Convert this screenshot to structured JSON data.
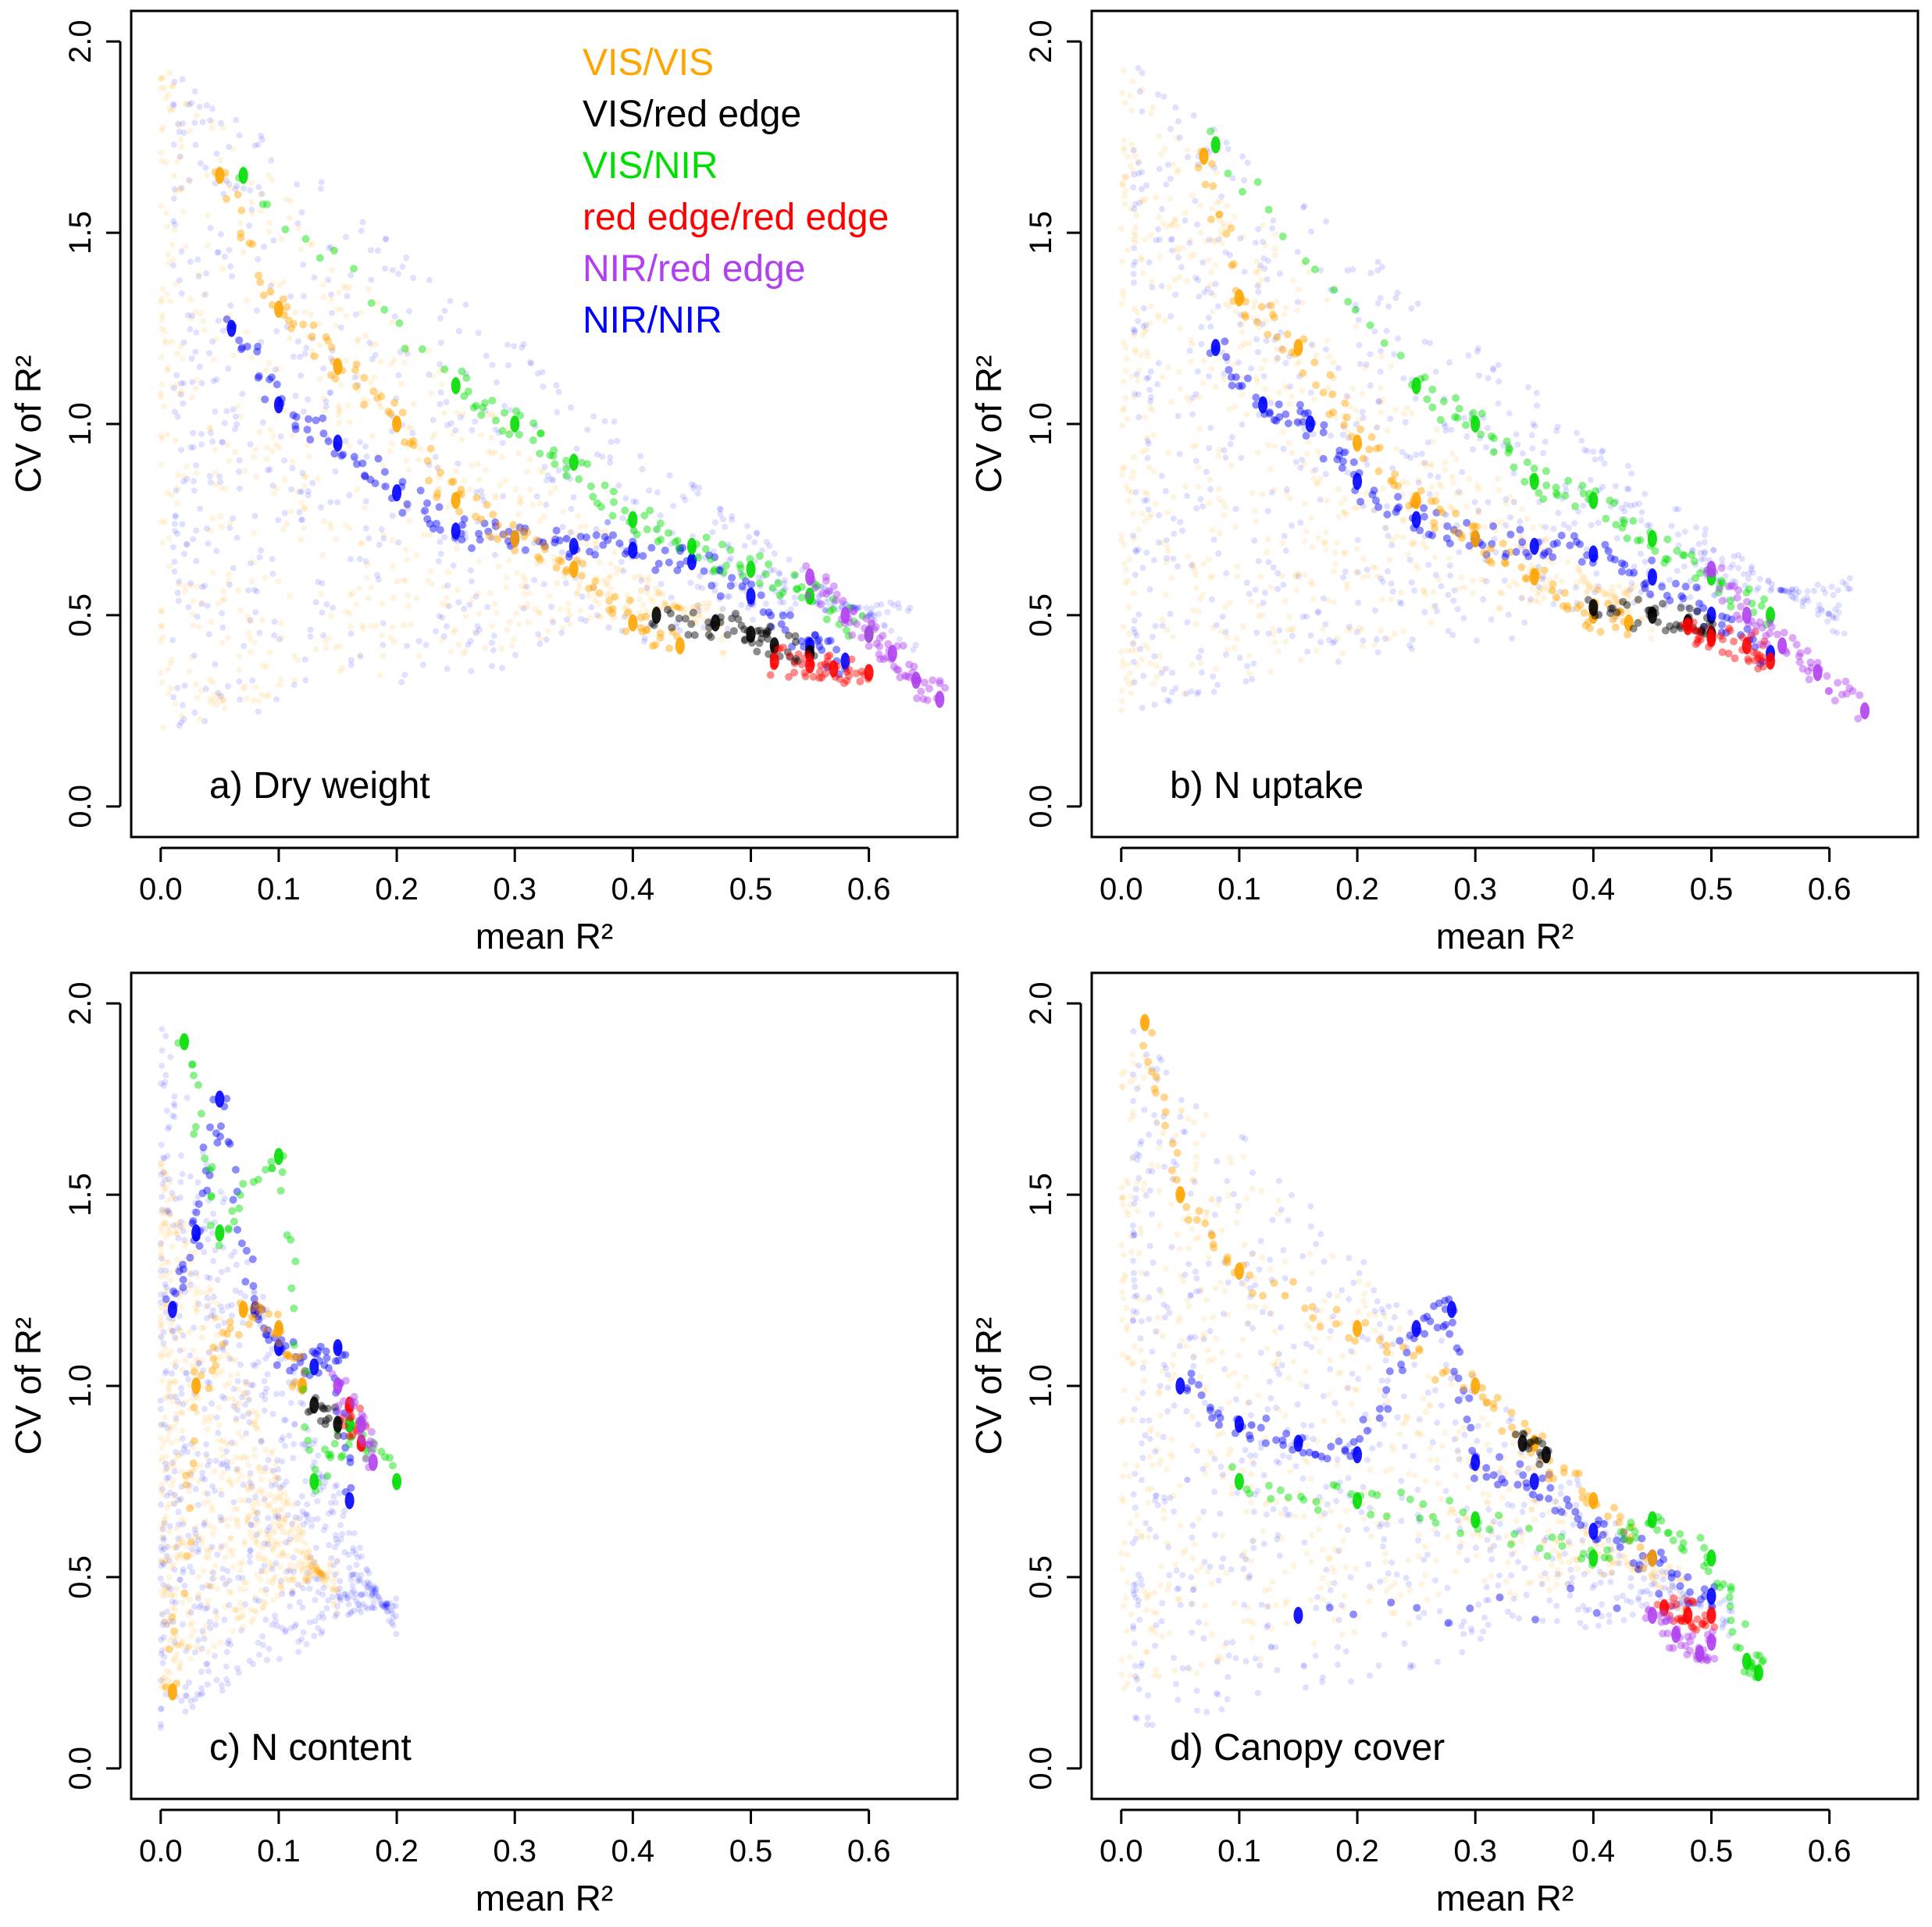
{
  "figure_name": "cv-vs-mean-r2-panels",
  "legend": [
    {
      "label": "VIS/VIS",
      "color": "#FFA500"
    },
    {
      "label": "VIS/red edge",
      "color": "#000000"
    },
    {
      "label": "VIS/NIR",
      "color": "#00DD00"
    },
    {
      "label": "red edge/red edge",
      "color": "#FF0000"
    },
    {
      "label": "NIR/red edge",
      "color": "#B040F0"
    },
    {
      "label": "NIR/NIR",
      "color": "#0000FF"
    }
  ],
  "chart_data": [
    {
      "type": "scatter",
      "title": "a) Dry weight",
      "xlabel": "mean R²",
      "ylabel": "CV of R²",
      "xlim": [
        -0.025,
        0.675
      ],
      "ylim": [
        -0.08,
        2.08
      ],
      "xticks": [
        "0.0",
        "0.1",
        "0.2",
        "0.3",
        "0.4",
        "0.5",
        "0.6"
      ],
      "yticks": [
        "0.0",
        "0.5",
        "1.0",
        "1.5",
        "2.0"
      ],
      "grid": false,
      "series": [
        {
          "name": "NIR/NIR",
          "cloud": {
            "xmin": 0.01,
            "xmax": 0.64,
            "ymin": 0.2,
            "ymax": 1.95
          },
          "points": [
            [
              0.06,
              1.25
            ],
            [
              0.1,
              1.05
            ],
            [
              0.15,
              0.95
            ],
            [
              0.2,
              0.82
            ],
            [
              0.25,
              0.72
            ],
            [
              0.3,
              0.7
            ],
            [
              0.35,
              0.68
            ],
            [
              0.4,
              0.67
            ],
            [
              0.45,
              0.64
            ],
            [
              0.5,
              0.55
            ],
            [
              0.55,
              0.42
            ],
            [
              0.58,
              0.38
            ]
          ]
        },
        {
          "name": "VIS/VIS",
          "cloud": {
            "xmin": 0.0,
            "xmax": 0.48,
            "ymin": 0.2,
            "ymax": 1.95
          },
          "points": [
            [
              0.05,
              1.65
            ],
            [
              0.1,
              1.3
            ],
            [
              0.15,
              1.15
            ],
            [
              0.2,
              1.0
            ],
            [
              0.25,
              0.8
            ],
            [
              0.3,
              0.7
            ],
            [
              0.35,
              0.62
            ],
            [
              0.4,
              0.48
            ],
            [
              0.44,
              0.42
            ]
          ]
        },
        {
          "name": "VIS/NIR",
          "points": [
            [
              0.07,
              1.65
            ],
            [
              0.25,
              1.1
            ],
            [
              0.3,
              1.0
            ],
            [
              0.35,
              0.9
            ],
            [
              0.4,
              0.75
            ],
            [
              0.45,
              0.68
            ],
            [
              0.5,
              0.62
            ],
            [
              0.55,
              0.55
            ],
            [
              0.6,
              0.45
            ]
          ]
        },
        {
          "name": "VIS/red edge",
          "points": [
            [
              0.42,
              0.5
            ],
            [
              0.47,
              0.48
            ],
            [
              0.5,
              0.45
            ],
            [
              0.52,
              0.42
            ],
            [
              0.55,
              0.4
            ]
          ]
        },
        {
          "name": "red edge/red edge",
          "points": [
            [
              0.52,
              0.38
            ],
            [
              0.55,
              0.37
            ],
            [
              0.57,
              0.36
            ],
            [
              0.6,
              0.35
            ]
          ]
        },
        {
          "name": "NIR/red edge",
          "points": [
            [
              0.55,
              0.6
            ],
            [
              0.58,
              0.5
            ],
            [
              0.6,
              0.45
            ],
            [
              0.62,
              0.4
            ],
            [
              0.64,
              0.33
            ],
            [
              0.66,
              0.28
            ]
          ]
        }
      ]
    },
    {
      "type": "scatter",
      "title": "b) N uptake",
      "xlabel": "mean R²",
      "ylabel": "CV of R²",
      "xlim": [
        -0.025,
        0.675
      ],
      "ylim": [
        -0.08,
        2.08
      ],
      "xticks": [
        "0.0",
        "0.1",
        "0.2",
        "0.3",
        "0.4",
        "0.5",
        "0.6"
      ],
      "yticks": [
        "0.0",
        "0.5",
        "1.0",
        "1.5",
        "2.0"
      ],
      "grid": false,
      "series": [
        {
          "name": "NIR/NIR",
          "cloud": {
            "xmin": 0.01,
            "xmax": 0.62,
            "ymin": 0.25,
            "ymax": 1.95
          },
          "points": [
            [
              0.08,
              1.2
            ],
            [
              0.12,
              1.05
            ],
            [
              0.16,
              1.0
            ],
            [
              0.2,
              0.85
            ],
            [
              0.25,
              0.75
            ],
            [
              0.3,
              0.7
            ],
            [
              0.35,
              0.68
            ],
            [
              0.4,
              0.66
            ],
            [
              0.45,
              0.6
            ],
            [
              0.5,
              0.5
            ],
            [
              0.55,
              0.4
            ]
          ]
        },
        {
          "name": "VIS/VIS",
          "cloud": {
            "xmin": 0.0,
            "xmax": 0.45,
            "ymin": 0.25,
            "ymax": 1.95
          },
          "points": [
            [
              0.07,
              1.7
            ],
            [
              0.1,
              1.33
            ],
            [
              0.15,
              1.2
            ],
            [
              0.2,
              0.95
            ],
            [
              0.25,
              0.8
            ],
            [
              0.3,
              0.7
            ],
            [
              0.35,
              0.6
            ],
            [
              0.4,
              0.5
            ],
            [
              0.43,
              0.48
            ]
          ]
        },
        {
          "name": "VIS/NIR",
          "points": [
            [
              0.08,
              1.73
            ],
            [
              0.25,
              1.1
            ],
            [
              0.3,
              1.0
            ],
            [
              0.35,
              0.85
            ],
            [
              0.4,
              0.8
            ],
            [
              0.45,
              0.7
            ],
            [
              0.5,
              0.6
            ],
            [
              0.55,
              0.5
            ]
          ]
        },
        {
          "name": "VIS/red edge",
          "points": [
            [
              0.4,
              0.52
            ],
            [
              0.45,
              0.5
            ],
            [
              0.48,
              0.48
            ],
            [
              0.5,
              0.45
            ]
          ]
        },
        {
          "name": "red edge/red edge",
          "points": [
            [
              0.48,
              0.47
            ],
            [
              0.5,
              0.44
            ],
            [
              0.53,
              0.42
            ],
            [
              0.55,
              0.38
            ]
          ]
        },
        {
          "name": "NIR/red edge",
          "points": [
            [
              0.5,
              0.62
            ],
            [
              0.53,
              0.5
            ],
            [
              0.56,
              0.42
            ],
            [
              0.59,
              0.35
            ],
            [
              0.63,
              0.25
            ]
          ]
        }
      ]
    },
    {
      "type": "scatter",
      "title": "c) N content",
      "xlabel": "mean R²",
      "ylabel": "CV of R²",
      "xlim": [
        -0.025,
        0.675
      ],
      "ylim": [
        -0.08,
        2.08
      ],
      "xticks": [
        "0.0",
        "0.1",
        "0.2",
        "0.3",
        "0.4",
        "0.5",
        "0.6"
      ],
      "yticks": [
        "0.0",
        "0.5",
        "1.0",
        "1.5",
        "2.0"
      ],
      "grid": false,
      "series": [
        {
          "name": "NIR/NIR",
          "cloud": {
            "xmin": 0.0,
            "xmax": 0.2,
            "ymin": 0.1,
            "ymax": 1.95
          },
          "points": [
            [
              0.01,
              1.2
            ],
            [
              0.03,
              1.4
            ],
            [
              0.05,
              1.75
            ],
            [
              0.08,
              1.2
            ],
            [
              0.1,
              1.1
            ],
            [
              0.13,
              1.05
            ],
            [
              0.15,
              1.1
            ],
            [
              0.16,
              0.7
            ]
          ]
        },
        {
          "name": "VIS/VIS",
          "cloud": {
            "xmin": 0.0,
            "xmax": 0.15,
            "ymin": 0.2,
            "ymax": 1.6
          },
          "points": [
            [
              0.01,
              0.2
            ],
            [
              0.03,
              1.0
            ],
            [
              0.07,
              1.2
            ],
            [
              0.1,
              1.15
            ],
            [
              0.12,
              1.0
            ]
          ]
        },
        {
          "name": "VIS/NIR",
          "points": [
            [
              0.02,
              1.9
            ],
            [
              0.05,
              1.4
            ],
            [
              0.1,
              1.6
            ],
            [
              0.13,
              0.75
            ],
            [
              0.16,
              0.9
            ],
            [
              0.2,
              0.75
            ]
          ]
        },
        {
          "name": "VIS/red edge",
          "points": [
            [
              0.13,
              0.95
            ],
            [
              0.15,
              0.9
            ]
          ]
        },
        {
          "name": "red edge/red edge",
          "points": [
            [
              0.16,
              0.95
            ],
            [
              0.17,
              0.85
            ]
          ]
        },
        {
          "name": "NIR/red edge",
          "points": [
            [
              0.15,
              1.0
            ],
            [
              0.17,
              0.9
            ],
            [
              0.18,
              0.8
            ]
          ]
        }
      ]
    },
    {
      "type": "scatter",
      "title": "d) Canopy cover",
      "xlabel": "mean R²",
      "ylabel": "CV of R²",
      "xlim": [
        -0.025,
        0.675
      ],
      "ylim": [
        -0.08,
        2.08
      ],
      "xticks": [
        "0.0",
        "0.1",
        "0.2",
        "0.3",
        "0.4",
        "0.5",
        "0.6"
      ],
      "yticks": [
        "0.0",
        "0.5",
        "1.0",
        "1.5",
        "2.0"
      ],
      "grid": false,
      "series": [
        {
          "name": "NIR/NIR",
          "cloud": {
            "xmin": 0.01,
            "xmax": 0.52,
            "ymin": 0.1,
            "ymax": 1.95
          },
          "points": [
            [
              0.05,
              1.0
            ],
            [
              0.1,
              0.9
            ],
            [
              0.15,
              0.85
            ],
            [
              0.2,
              0.82
            ],
            [
              0.25,
              1.15
            ],
            [
              0.28,
              1.2
            ],
            [
              0.3,
              0.8
            ],
            [
              0.35,
              0.75
            ],
            [
              0.4,
              0.62
            ],
            [
              0.45,
              0.55
            ],
            [
              0.5,
              0.45
            ],
            [
              0.15,
              0.4
            ]
          ]
        },
        {
          "name": "VIS/VIS",
          "cloud": {
            "xmin": 0.0,
            "xmax": 0.48,
            "ymin": 0.2,
            "ymax": 1.95
          },
          "points": [
            [
              0.02,
              1.95
            ],
            [
              0.05,
              1.5
            ],
            [
              0.1,
              1.3
            ],
            [
              0.2,
              1.15
            ],
            [
              0.3,
              1.0
            ],
            [
              0.35,
              0.85
            ],
            [
              0.4,
              0.7
            ],
            [
              0.45,
              0.55
            ]
          ]
        },
        {
          "name": "VIS/NIR",
          "points": [
            [
              0.1,
              0.75
            ],
            [
              0.2,
              0.7
            ],
            [
              0.3,
              0.65
            ],
            [
              0.4,
              0.55
            ],
            [
              0.45,
              0.65
            ],
            [
              0.5,
              0.55
            ],
            [
              0.53,
              0.28
            ],
            [
              0.54,
              0.25
            ]
          ]
        },
        {
          "name": "VIS/red edge",
          "points": [
            [
              0.34,
              0.85
            ],
            [
              0.36,
              0.82
            ]
          ]
        },
        {
          "name": "red edge/red edge",
          "points": [
            [
              0.46,
              0.42
            ],
            [
              0.48,
              0.4
            ],
            [
              0.5,
              0.4
            ]
          ]
        },
        {
          "name": "NIR/red edge",
          "points": [
            [
              0.45,
              0.4
            ],
            [
              0.47,
              0.35
            ],
            [
              0.49,
              0.3
            ],
            [
              0.5,
              0.33
            ]
          ]
        }
      ]
    }
  ]
}
